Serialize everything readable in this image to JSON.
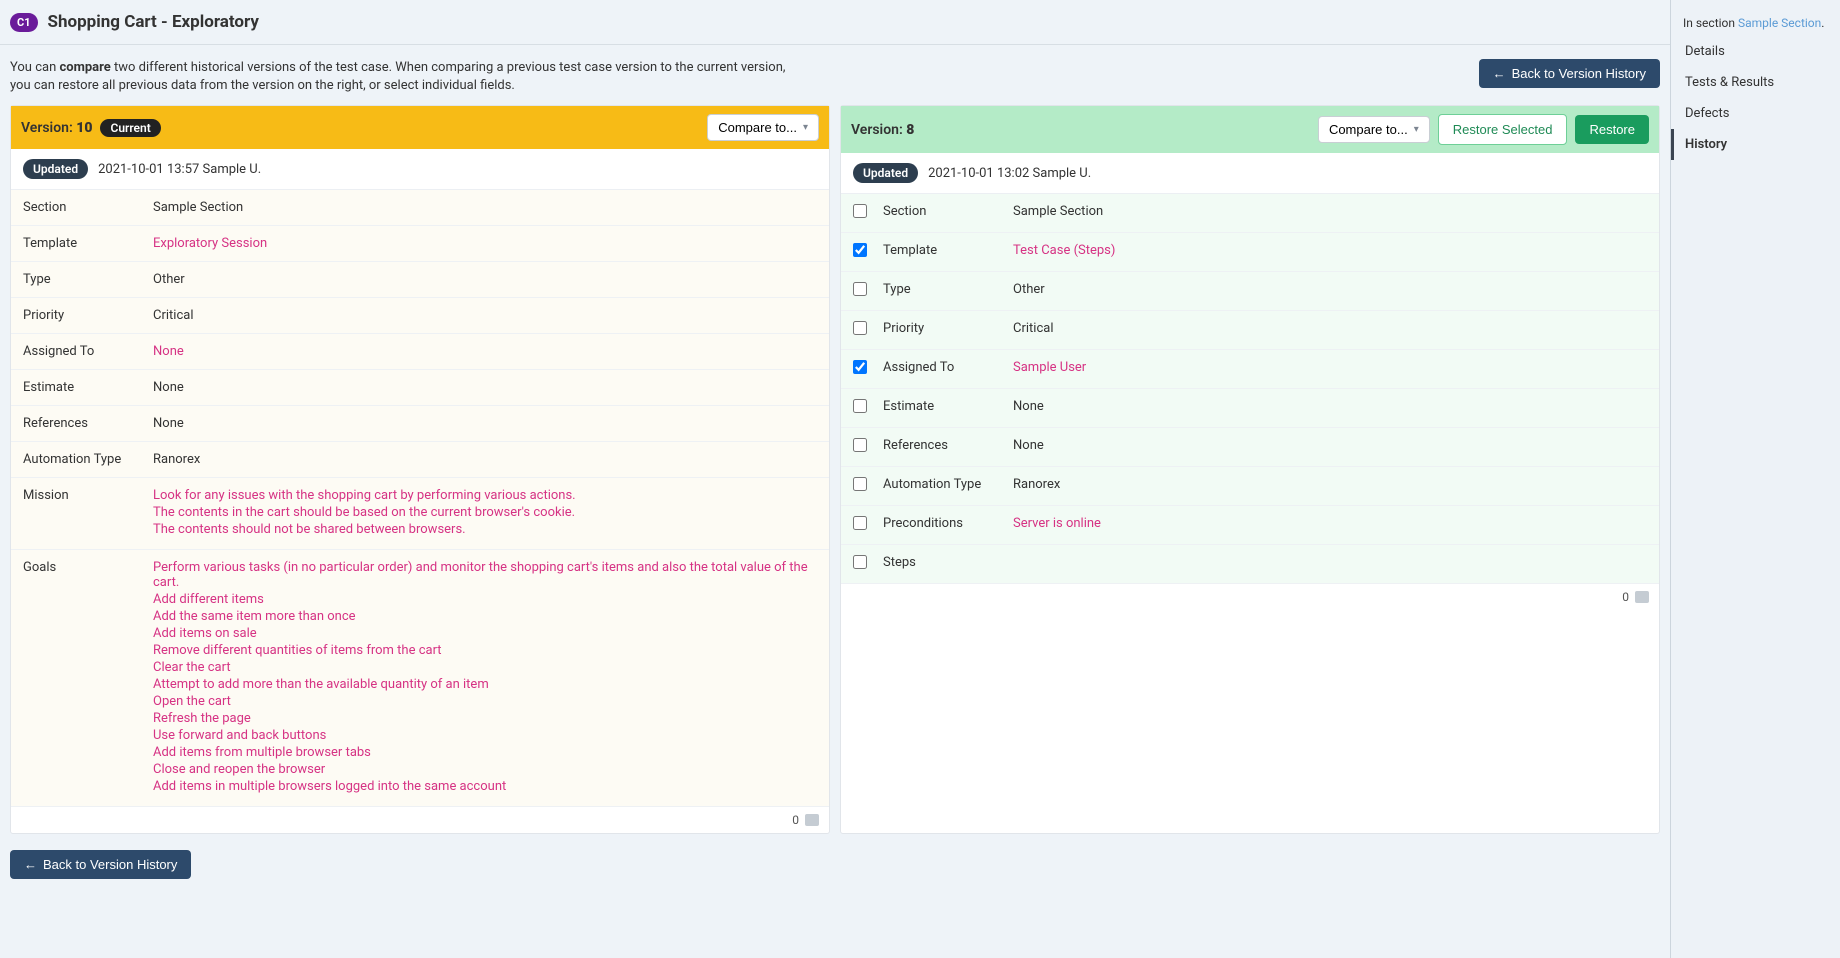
{
  "header": {
    "badge": "C1",
    "title": "Shopping Cart - Exploratory"
  },
  "subheader": {
    "desc_pre": "You can ",
    "desc_bold": "compare",
    "desc_post": " two different historical versions of the test case. When comparing a previous test case version to the current version, you can restore all previous data from the version on the right, or select individual fields.",
    "back_btn": "Back to Version History"
  },
  "left": {
    "version_label": "Version: ",
    "version_num": "10",
    "current_label": "Current",
    "compare_label": "Compare to...",
    "updated_label": "Updated",
    "updated_meta": "2021-10-01 13:57 Sample U.",
    "fields": [
      {
        "label": "Section",
        "value": "Sample Section",
        "diff": false
      },
      {
        "label": "Template",
        "value": "Exploratory Session",
        "diff": true
      },
      {
        "label": "Type",
        "value": "Other",
        "diff": false
      },
      {
        "label": "Priority",
        "value": "Critical",
        "diff": false
      },
      {
        "label": "Assigned To",
        "value": "None",
        "diff": true
      },
      {
        "label": "Estimate",
        "value": "None",
        "diff": false
      },
      {
        "label": "References",
        "value": "None",
        "diff": false
      },
      {
        "label": "Automation Type",
        "value": "Ranorex",
        "diff": false
      }
    ],
    "mission": {
      "label": "Mission",
      "lines": [
        "Look for any issues with the shopping cart by performing various actions.",
        "The contents in the cart should be based on the current browser's cookie.",
        "The contents should not be shared between browsers."
      ]
    },
    "goals": {
      "label": "Goals",
      "lines": [
        "Perform various tasks (in no particular order) and monitor the shopping cart's items and also the total value of the cart.",
        "Add different items",
        "Add the same item more than once",
        "Add items on sale",
        "Remove different quantities of items from the cart",
        "Clear the cart",
        "Attempt to add more than the available quantity of an item",
        "Open the cart",
        "Refresh the page",
        "Use forward and back buttons",
        "Add items from multiple browser tabs",
        "Close and reopen the browser",
        "Add items in multiple browsers logged into the same account"
      ]
    },
    "count": "0"
  },
  "right": {
    "version_label": "Version: ",
    "version_num": "8",
    "compare_label": "Compare to...",
    "restore_selected": "Restore Selected",
    "restore": "Restore",
    "updated_label": "Updated",
    "updated_meta": "2021-10-01 13:02 Sample U.",
    "fields": [
      {
        "label": "Section",
        "value": "Sample Section",
        "diff": false,
        "checked": false
      },
      {
        "label": "Template",
        "value": "Test Case (Steps)",
        "diff": true,
        "checked": true
      },
      {
        "label": "Type",
        "value": "Other",
        "diff": false,
        "checked": false
      },
      {
        "label": "Priority",
        "value": "Critical",
        "diff": false,
        "checked": false
      },
      {
        "label": "Assigned To",
        "value": "Sample User",
        "diff": true,
        "checked": true
      },
      {
        "label": "Estimate",
        "value": "None",
        "diff": false,
        "checked": false
      },
      {
        "label": "References",
        "value": "None",
        "diff": false,
        "checked": false
      },
      {
        "label": "Automation Type",
        "value": "Ranorex",
        "diff": false,
        "checked": false
      },
      {
        "label": "Preconditions",
        "value": "Server is online",
        "diff": true,
        "checked": false
      },
      {
        "label": "Steps",
        "value": "",
        "diff": true,
        "checked": false
      }
    ],
    "count": "0"
  },
  "bottom": {
    "back_btn": "Back to Version History"
  },
  "rightnav": {
    "in_section_label": "In section ",
    "section_link": "Sample Section",
    "items": [
      "Details",
      "Tests & Results",
      "Defects",
      "History"
    ],
    "active": "History"
  }
}
